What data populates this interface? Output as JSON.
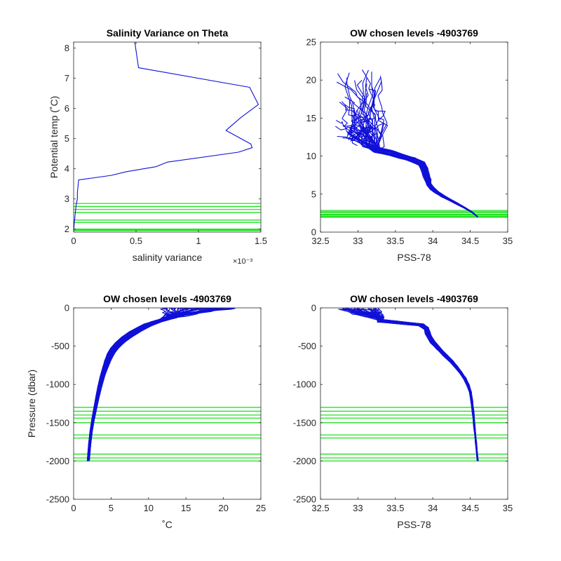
{
  "chart_data": [
    {
      "id": "p1",
      "type": "line",
      "title": "Salinity Variance on Theta",
      "xlabel": "salinity variance",
      "ylabel": "Potential temp (˚C)",
      "x_exponent_label": "×10⁻³",
      "xlim": [
        0,
        0.0015
      ],
      "ylim": [
        1.9,
        8.2
      ],
      "x_ticks": [
        0,
        0.0005,
        0.001,
        0.0015
      ],
      "x_tick_labels": [
        "0",
        "0.5",
        "1",
        "1.5"
      ],
      "y_ticks": [
        2,
        3,
        4,
        5,
        6,
        7,
        8
      ],
      "y_tick_labels": [
        "2",
        "3",
        "4",
        "5",
        "6",
        "7",
        "8"
      ],
      "series": [
        {
          "color": "#1010d8",
          "x": [
            0.0,
            1e-05,
            2e-05,
            3e-05,
            3e-05,
            4e-05,
            0.0003,
            0.00042,
            0.00066,
            0.00075,
            0.00132,
            0.00143,
            0.00142,
            0.00122,
            0.00134,
            0.00148,
            0.00141,
            0.00052,
            0.00049
          ],
          "y": [
            1.95,
            2.4,
            2.8,
            3.0,
            3.2,
            3.63,
            3.78,
            3.9,
            4.07,
            4.22,
            4.55,
            4.7,
            4.82,
            5.27,
            5.7,
            6.13,
            6.7,
            7.35,
            8.2
          ]
        }
      ],
      "horizontal_lines_color": "#22e022",
      "horizontal_lines_y": [
        1.95,
        1.97,
        2.0,
        2.22,
        2.3,
        2.55,
        2.65,
        2.75,
        2.85
      ]
    },
    {
      "id": "p2",
      "type": "line",
      "title": "OW chosen levels -4903769",
      "xlabel": "PSS-78",
      "ylabel": "",
      "xlim": [
        32.5,
        35
      ],
      "ylim": [
        0,
        25
      ],
      "x_ticks": [
        32.5,
        33,
        33.5,
        34,
        34.5,
        35
      ],
      "x_tick_labels": [
        "32.5",
        "33",
        "33.5",
        "34",
        "34.5",
        "35"
      ],
      "y_ticks": [
        0,
        5,
        10,
        15,
        20,
        25
      ],
      "y_tick_labels": [
        "0",
        "5",
        "10",
        "15",
        "20",
        "25"
      ],
      "deep_curve": {
        "color": "#1010d8",
        "x": [
          33.25,
          33.5,
          33.7,
          33.85,
          33.9,
          33.93,
          33.95,
          34.0,
          34.1,
          34.22,
          34.35,
          34.5,
          34.6
        ],
        "y": [
          10.8,
          10.3,
          9.7,
          9.0,
          8.0,
          7.0,
          6.3,
          5.6,
          4.9,
          4.3,
          3.6,
          2.8,
          2.0
        ]
      },
      "profile_count": 45,
      "surface_salinity_range": [
        32.72,
        33.3
      ],
      "surface_temp_range": [
        11.5,
        21.8
      ],
      "horizontal_lines_color": "#22e022",
      "horizontal_lines_y": [
        1.95,
        2.0,
        2.1,
        2.25,
        2.35,
        2.55,
        2.7,
        2.85
      ]
    },
    {
      "id": "p3",
      "type": "line",
      "title": "OW chosen levels -4903769",
      "xlabel": "˚C",
      "ylabel": "Pressure (dbar)",
      "xlim": [
        0,
        25
      ],
      "ylim": [
        -2500,
        0
      ],
      "x_ticks": [
        0,
        5,
        10,
        15,
        20,
        25
      ],
      "x_tick_labels": [
        "0",
        "5",
        "10",
        "15",
        "20",
        "25"
      ],
      "y_ticks": [
        0,
        -500,
        -1000,
        -1500,
        -2000,
        -2500
      ],
      "y_tick_labels": [
        "0",
        "-500",
        "-1000",
        "-1500",
        "-2000",
        "-2500"
      ],
      "mean_curve": {
        "color": "#1010d8",
        "x": [
          1.95,
          2.2,
          2.5,
          2.9,
          3.3,
          3.8,
          4.3,
          4.8,
          5.5,
          6.5,
          8.0,
          9.7,
          11.0,
          12.5
        ],
        "y": [
          -2000,
          -1700,
          -1500,
          -1300,
          -1100,
          -900,
          -750,
          -620,
          -520,
          -420,
          -320,
          -230,
          -180,
          -140
        ]
      },
      "profile_count": 45,
      "surface_temp_range": [
        11.5,
        21.8
      ],
      "horizontal_lines_color": "#22e022",
      "horizontal_lines_y": [
        -1300,
        -1350,
        -1400,
        -1440,
        -1500,
        -1660,
        -1700,
        -1910,
        -1960,
        -2000
      ]
    },
    {
      "id": "p4",
      "type": "line",
      "title": "OW chosen levels -4903769",
      "xlabel": "PSS-78",
      "ylabel": "",
      "xlim": [
        32.5,
        35
      ],
      "ylim": [
        -2500,
        0
      ],
      "x_ticks": [
        32.5,
        33,
        33.5,
        34,
        34.5,
        35
      ],
      "x_tick_labels": [
        "32.5",
        "33",
        "33.5",
        "34",
        "34.5",
        "35"
      ],
      "y_ticks": [
        0,
        -500,
        -1000,
        -1500,
        -2000,
        -2500
      ],
      "y_tick_labels": [
        "0",
        "-500",
        "-1000",
        "-1500",
        "-2000",
        "-2500"
      ],
      "mean_curve": {
        "color": "#1010d8",
        "x": [
          33.3,
          33.6,
          33.9,
          33.93,
          33.97,
          34.1,
          34.25,
          34.35,
          34.45,
          34.5,
          34.53,
          34.56,
          34.6
        ],
        "y": [
          -170,
          -200,
          -230,
          -330,
          -420,
          -560,
          -700,
          -820,
          -950,
          -1100,
          -1300,
          -1600,
          -2000
        ]
      },
      "profile_count": 45,
      "surface_salinity_range": [
        32.72,
        33.3
      ],
      "horizontal_lines_color": "#22e022",
      "horizontal_lines_y": [
        -1300,
        -1350,
        -1400,
        -1440,
        -1500,
        -1660,
        -1700,
        -1910,
        -1960,
        -2000
      ]
    }
  ]
}
